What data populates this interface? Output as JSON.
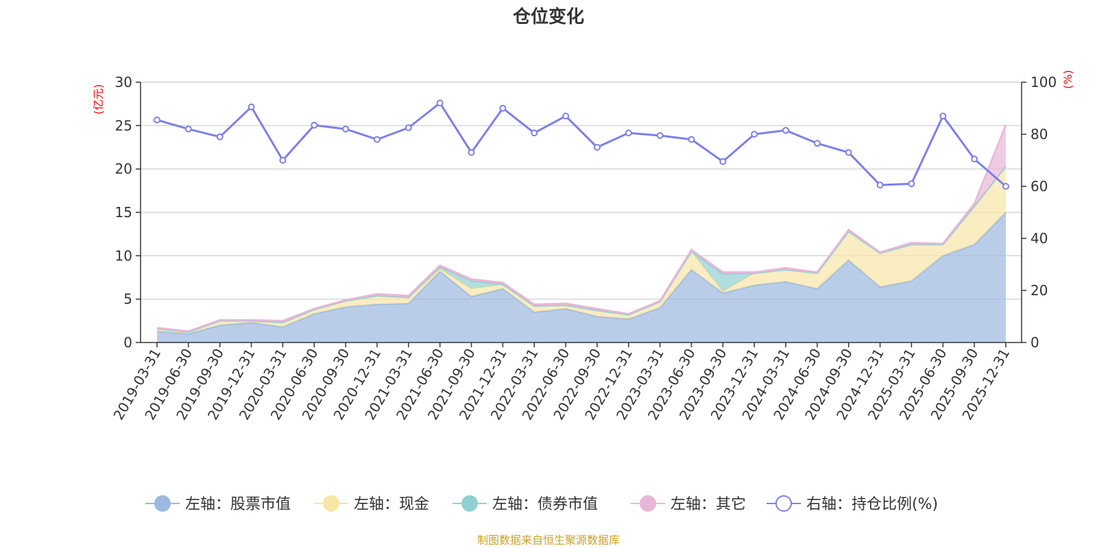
{
  "chart_data": {
    "type": "area",
    "title": "仓位变化",
    "source": "制图数据来自恒生聚源数据库",
    "categories": [
      "2019-03-31",
      "2019-06-30",
      "2019-09-30",
      "2019-12-31",
      "2020-03-31",
      "2020-06-30",
      "2020-09-30",
      "2020-12-31",
      "2021-03-31",
      "2021-06-30",
      "2021-09-30",
      "2021-12-31",
      "2022-03-31",
      "2022-06-30",
      "2022-09-30",
      "2022-12-31",
      "2023-03-31",
      "2023-06-30",
      "2023-09-30",
      "2023-12-31",
      "2024-03-31",
      "2024-06-30",
      "2024-09-30",
      "2024-12-31",
      "2025-03-31",
      "2025-06-30",
      "2025-09-30",
      "2025-12-31"
    ],
    "left_axis": {
      "unit": "(亿元)",
      "ylim": [
        0,
        30
      ],
      "ticks": [
        0,
        5,
        10,
        15,
        20,
        25,
        30
      ]
    },
    "right_axis": {
      "unit": "(%)",
      "ylim": [
        0,
        100
      ],
      "ticks": [
        0,
        20,
        40,
        60,
        80,
        100
      ]
    },
    "grid": true,
    "legend_position": "bottom",
    "series": [
      {
        "name": "左轴：股票市值",
        "axis": "left",
        "color": "#9bb8e0",
        "values": [
          1.3,
          1.0,
          2.0,
          2.3,
          1.8,
          3.3,
          4.1,
          4.4,
          4.5,
          8.2,
          5.3,
          6.2,
          3.5,
          3.9,
          3.0,
          2.7,
          4.0,
          8.4,
          5.7,
          6.6,
          7.0,
          6.2,
          9.5,
          6.4,
          7.1,
          10.0,
          11.3,
          15.0
        ]
      },
      {
        "name": "左轴：现金",
        "axis": "left",
        "color": "#f7e6a6",
        "values": [
          0.3,
          0.2,
          0.5,
          0.2,
          0.5,
          0.5,
          0.7,
          1.0,
          0.7,
          0.3,
          0.9,
          0.5,
          0.7,
          0.4,
          0.7,
          0.5,
          0.7,
          2.1,
          0.2,
          1.4,
          1.4,
          1.8,
          3.3,
          3.9,
          4.2,
          1.3,
          4.4,
          5.3
        ]
      },
      {
        "name": "左轴：债券市值",
        "axis": "left",
        "color": "#93d0d3",
        "values": [
          0,
          0,
          0,
          0,
          0,
          0,
          0,
          0,
          0,
          0.2,
          0.9,
          0,
          0,
          0,
          0,
          0,
          0,
          0,
          2.0,
          0,
          0,
          0,
          0,
          0,
          0,
          0,
          0,
          0
        ]
      },
      {
        "name": "左轴：其它",
        "axis": "left",
        "color": "#e8b6d8",
        "values": [
          0.1,
          0.1,
          0.1,
          0.1,
          0.2,
          0.1,
          0.1,
          0.2,
          0.2,
          0.2,
          0.2,
          0.2,
          0.2,
          0.2,
          0.2,
          0.1,
          0.1,
          0.2,
          0.2,
          0.1,
          0.2,
          0.1,
          0.2,
          0.1,
          0.2,
          0.1,
          0.3,
          4.8
        ]
      },
      {
        "name": "右轴：持仓比例(%)",
        "axis": "right",
        "color": "#7d7fea",
        "values": [
          85.5,
          82,
          79,
          90.5,
          70,
          83.5,
          82,
          78,
          82.5,
          92,
          73,
          90,
          80.5,
          87,
          75,
          80.5,
          79.5,
          78,
          69.5,
          80,
          81.5,
          76.5,
          73,
          60.5,
          61,
          87,
          70.5,
          60
        ]
      }
    ]
  }
}
